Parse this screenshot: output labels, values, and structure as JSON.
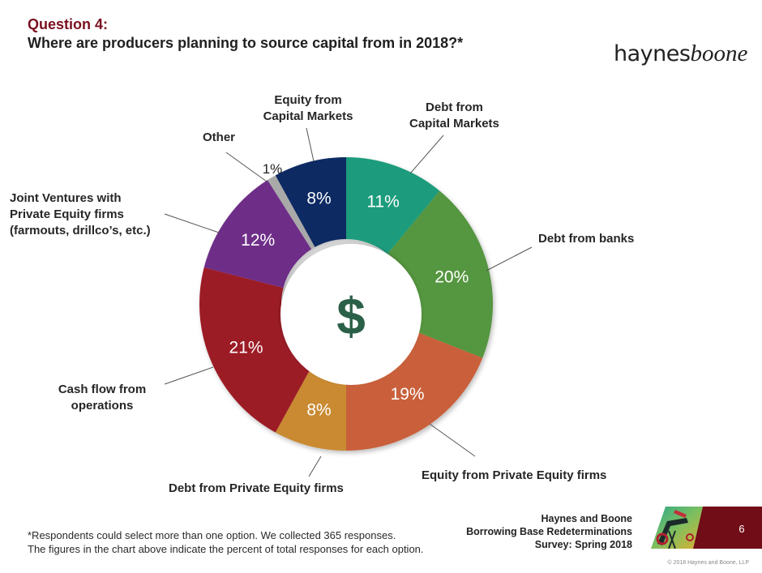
{
  "header": {
    "question_number": "Question 4:",
    "question_text": "Where are producers planning to source capital from in 2018?*"
  },
  "logo": {
    "part1": "haynes",
    "part2": "boone"
  },
  "chart_data": {
    "type": "pie",
    "subtype": "donut",
    "title": "Where are producers planning to source capital from in 2018?*",
    "center_symbol": "$",
    "start_angle_deg": 0,
    "direction": "clockwise",
    "categories": [
      "Debt from Capital Markets",
      "Debt from banks",
      "Equity from Private Equity firms",
      "Debt from Private Equity firms",
      "Cash flow from operations",
      "Joint Ventures with Private Equity firms (farmouts, drillco's, etc.)",
      "Other",
      "Equity from Capital Markets"
    ],
    "values": [
      11,
      20,
      19,
      8,
      21,
      12,
      1,
      8
    ],
    "value_labels": [
      "11%",
      "20%",
      "19%",
      "8%",
      "21%",
      "12%",
      "1%",
      "8%"
    ],
    "units": "percent of total responses",
    "colors": [
      "#1f9c7b",
      "#55963f",
      "#c9613a",
      "#c98a30",
      "#9c1f28",
      "#6e2f88",
      "#a9a9a9",
      "#0b2a63"
    ],
    "legend": "callout labels with leader lines"
  },
  "labels": {
    "debt_capital_markets": [
      "Debt from",
      "Capital Markets"
    ],
    "debt_banks": [
      "Debt from banks"
    ],
    "equity_pe": [
      "Equity from Private Equity firms"
    ],
    "debt_pe": [
      "Debt from Private Equity firms"
    ],
    "cash_flow": [
      "Cash flow from",
      "operations"
    ],
    "jv": [
      "Joint Ventures with",
      "Private Equity firms",
      "(farmouts, drillco’s, etc.)"
    ],
    "other": [
      "Other"
    ],
    "equity_capital_markets": [
      "Equity from",
      "Capital Markets"
    ]
  },
  "footer": {
    "note_line1": "*Respondents could select more than one option. We collected 365 responses.",
    "note_line2": "The figures in the chart above indicate the percent of total responses for each option.",
    "survey_line1": "Haynes and Boone",
    "survey_line2": "Borrowing Base Redeterminations",
    "survey_line3": "Survey: Spring 2018",
    "page_number": "6",
    "copyright": "© 2018 Haynes and Boone, LLP"
  }
}
